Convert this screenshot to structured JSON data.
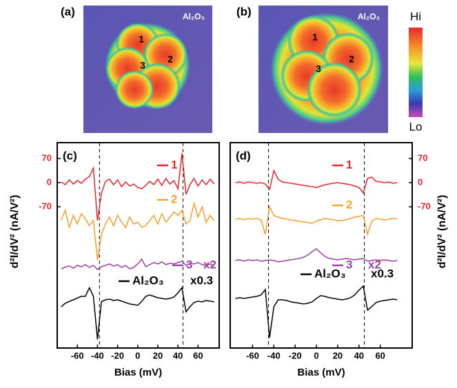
{
  "images": [
    {
      "label": "(a)",
      "tag": "Al₂O₃",
      "points": [
        "1",
        "2",
        "3"
      ]
    },
    {
      "label": "(b)",
      "tag": "Al₂O₃",
      "points": [
        "1",
        "2",
        "3"
      ]
    }
  ],
  "colorbar": {
    "high": "Hi",
    "low": "Lo"
  },
  "chart_data": [
    {
      "type": "line",
      "label": "(c)",
      "xlabel": "Bias (mV)",
      "ylabel": "d²I/dV² (nA/V²)",
      "xlim": [
        -80,
        81
      ],
      "ylim": [
        -480,
        116
      ],
      "xticks": [
        -60,
        -40,
        -20,
        0,
        20,
        40,
        60
      ],
      "yticks": [
        70,
        0,
        -70
      ],
      "vlines": [
        -38,
        45
      ],
      "x": [
        -76,
        -72,
        -68,
        -64,
        -60,
        -56,
        -52,
        -48,
        -44,
        -40,
        -36,
        -32,
        -28,
        -24,
        -20,
        -16,
        -12,
        -8,
        -4,
        0,
        4,
        8,
        12,
        16,
        20,
        24,
        28,
        32,
        36,
        40,
        44,
        48,
        52,
        56,
        60,
        64,
        68,
        72,
        76
      ],
      "series": [
        {
          "name": "1",
          "color": "#e8252a",
          "values": [
            2,
            -6,
            8,
            -4,
            6,
            -2,
            10,
            18,
            42,
            -110,
            -30,
            4,
            10,
            -6,
            8,
            -12,
            2,
            -10,
            -4,
            -14,
            -18,
            -8,
            4,
            -6,
            10,
            -8,
            12,
            -4,
            6,
            -18,
            85,
            -34,
            -6,
            12,
            -10,
            8,
            -6,
            10,
            -4
          ]
        },
        {
          "name": "2",
          "color": "#f5a02a",
          "values": [
            -110,
            -80,
            -130,
            -95,
            -120,
            -90,
            -105,
            -125,
            -110,
            -225,
            -150,
            -120,
            -100,
            -125,
            -95,
            -115,
            -130,
            -100,
            -120,
            -115,
            -130,
            -125,
            -110,
            -95,
            -120,
            -90,
            -115,
            -100,
            -85,
            -95,
            -80,
            -120,
            -110,
            -60,
            -100,
            -70,
            -115,
            -95,
            -110
          ]
        },
        {
          "name": "3",
          "color": "#9b3fa0",
          "note": "x2",
          "values": [
            -250,
            -245,
            -242,
            -248,
            -240,
            -244,
            -238,
            -246,
            -240,
            -252,
            -244,
            -240,
            -236,
            -242,
            -238,
            -246,
            -240,
            -250,
            -246,
            -236,
            -222,
            -244,
            -238,
            -232,
            -236,
            -230,
            -238,
            -234,
            -236,
            -232,
            -228,
            -240,
            -234,
            -236,
            -232,
            -238,
            -240,
            -236,
            -242
          ]
        },
        {
          "name": "Al₂O₃",
          "color": "#000000",
          "note": "x0.3",
          "values": [
            -360,
            -350,
            -345,
            -340,
            -335,
            -330,
            -330,
            -305,
            -330,
            -455,
            -345,
            -340,
            -338,
            -342,
            -340,
            -344,
            -348,
            -352,
            -354,
            -356,
            -345,
            -330,
            -326,
            -330,
            -334,
            -336,
            -338,
            -336,
            -332,
            -320,
            -305,
            -375,
            -360,
            -348,
            -344,
            -346,
            -342,
            -344,
            -346
          ]
        }
      ]
    },
    {
      "type": "line",
      "label": "(d)",
      "xlabel": "Bias (mV)",
      "ylabel": "d²I/dV² (nA/V²)",
      "xlim": [
        -81,
        90
      ],
      "ylim": [
        -480,
        116
      ],
      "xticks": [
        -60,
        -40,
        -20,
        0,
        20,
        40,
        60
      ],
      "yticks": [
        70,
        0,
        -70
      ],
      "vlines": [
        -45,
        45
      ],
      "x": [
        -76,
        -72,
        -68,
        -64,
        -60,
        -56,
        -52,
        -48,
        -44,
        -40,
        -36,
        -32,
        -28,
        -24,
        -20,
        -16,
        -12,
        -8,
        -4,
        0,
        4,
        8,
        12,
        16,
        20,
        24,
        28,
        32,
        36,
        40,
        44,
        48,
        52,
        56,
        60,
        64,
        68,
        72,
        76
      ],
      "series": [
        {
          "name": "1",
          "color": "#e8252a",
          "values": [
            0,
            2,
            -2,
            2,
            0,
            -2,
            0,
            -4,
            -20,
            35,
            10,
            2,
            0,
            -2,
            -4,
            -6,
            -8,
            -10,
            -12,
            -14,
            -10,
            -6,
            -4,
            -2,
            0,
            -2,
            -4,
            -6,
            -10,
            -14,
            -30,
            12,
            16,
            4,
            2,
            0,
            2,
            -2,
            0
          ]
        },
        {
          "name": "2",
          "color": "#f5a02a",
          "values": [
            -106,
            -104,
            -108,
            -104,
            -106,
            -104,
            -108,
            -150,
            -70,
            -95,
            -100,
            -104,
            -106,
            -108,
            -110,
            -112,
            -114,
            -116,
            -118,
            -112,
            -108,
            -104,
            -106,
            -108,
            -110,
            -110,
            -108,
            -104,
            -100,
            -98,
            -95,
            -150,
            -112,
            -104,
            -106,
            -108,
            -106,
            -104,
            -106
          ]
        },
        {
          "name": "3",
          "color": "#9b3fa0",
          "note": "x2",
          "values": [
            -226,
            -224,
            -228,
            -224,
            -226,
            -224,
            -228,
            -226,
            -224,
            -226,
            -230,
            -228,
            -226,
            -224,
            -222,
            -220,
            -216,
            -210,
            -200,
            -192,
            -204,
            -214,
            -220,
            -222,
            -224,
            -222,
            -220,
            -222,
            -224,
            -222,
            -220,
            -228,
            -226,
            -224,
            -226,
            -224,
            -226,
            -228,
            -226
          ]
        },
        {
          "name": "Al₂O₃",
          "color": "#000000",
          "note": "x0.3",
          "values": [
            -336,
            -334,
            -336,
            -334,
            -332,
            -330,
            -326,
            -310,
            -450,
            -360,
            -340,
            -340,
            -342,
            -346,
            -348,
            -350,
            -352,
            -350,
            -346,
            -336,
            -328,
            -330,
            -334,
            -336,
            -338,
            -340,
            -338,
            -334,
            -326,
            -312,
            -300,
            -370,
            -360,
            -348,
            -344,
            -342,
            -340,
            -338,
            -340
          ]
        }
      ]
    }
  ]
}
